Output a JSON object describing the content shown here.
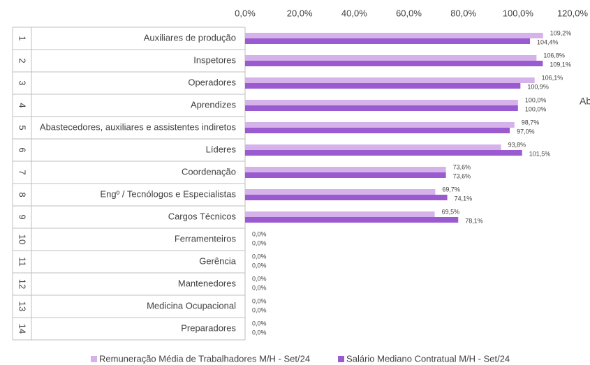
{
  "chart_data": {
    "type": "bar",
    "orientation": "horizontal",
    "category_numbers": [
      "1",
      "2",
      "3",
      "4",
      "5",
      "6",
      "7",
      "8",
      "9",
      "10",
      "11",
      "12",
      "13",
      "14"
    ],
    "categories": [
      "Auxiliares de produção",
      "Inspetores",
      "Operadores",
      "Aprendizes",
      "Abastecedores, auxiliares e assistentes indiretos",
      "Líderes",
      "Coordenação",
      "Engº / Tecnólogos e Especialistas",
      "Cargos Técnicos",
      "Ferramenteiros",
      "Gerência",
      "Mantenedores",
      "Medicina Ocupacional",
      "Preparadores"
    ],
    "series": [
      {
        "name": "Remuneração Média de Trabalhadores M/H - Set/24",
        "color": "#d6b2ea",
        "values": [
          109.2,
          106.8,
          106.1,
          100.0,
          98.7,
          93.8,
          73.6,
          69.7,
          69.5,
          0,
          0,
          0,
          0,
          0
        ],
        "value_labels": [
          "109,2%",
          "106,8%",
          "106,1%",
          "100,0%",
          "98,7%",
          "93,8%",
          "73,6%",
          "69,7%",
          "69,5%",
          "0,0%",
          "0,0%",
          "0,0%",
          "0,0%",
          "0,0%"
        ]
      },
      {
        "name": "Salário Mediano Contratual M/H - Set/24",
        "color": "#9b5bd0",
        "values": [
          104.4,
          109.1,
          100.9,
          100.0,
          97.0,
          101.5,
          73.6,
          74.1,
          78.1,
          0,
          0,
          0,
          0,
          0
        ],
        "value_labels": [
          "104,4%",
          "109,1%",
          "100,9%",
          "100,0%",
          "97,0%",
          "101,5%",
          "73,6%",
          "74,1%",
          "78,1%",
          "0,0%",
          "0,0%",
          "0,0%",
          "0,0%",
          "0,0%"
        ]
      }
    ],
    "xlim": [
      0,
      120
    ],
    "xticks": [
      {
        "value": 0,
        "label": "0,0%"
      },
      {
        "value": 20,
        "label": "20,0%"
      },
      {
        "value": 40,
        "label": "40,0%"
      },
      {
        "value": 60,
        "label": "60,0%"
      },
      {
        "value": 80,
        "label": "80,0%"
      },
      {
        "value": 100,
        "label": "100,0%"
      },
      {
        "value": 120,
        "label": "120,0%"
      }
    ],
    "annotation": "Ab",
    "legend": "bottom"
  }
}
